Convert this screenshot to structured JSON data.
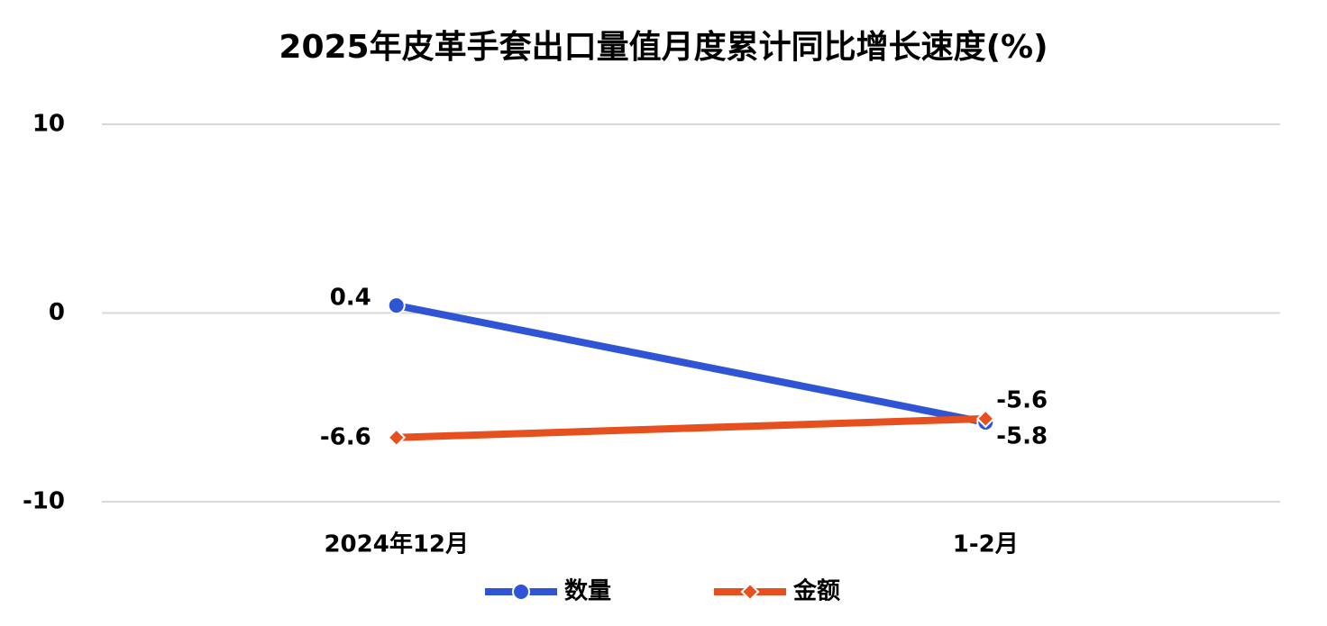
{
  "chart_data": {
    "type": "line",
    "title": "2025年皮革手套出口量值月度累计同比增长速度(%)",
    "categories": [
      "2024年12月",
      "1-2月"
    ],
    "series": [
      {
        "name": "数量",
        "color": "#2f55d4",
        "marker": "circle",
        "values": [
          0.4,
          -5.8
        ]
      },
      {
        "name": "金额",
        "color": "#e5501e",
        "marker": "diamond",
        "values": [
          -6.6,
          -5.6
        ]
      }
    ],
    "ylim": [
      -10,
      10
    ],
    "yticks": [
      -10,
      0,
      10
    ],
    "grid": true,
    "legend": "bottom"
  }
}
